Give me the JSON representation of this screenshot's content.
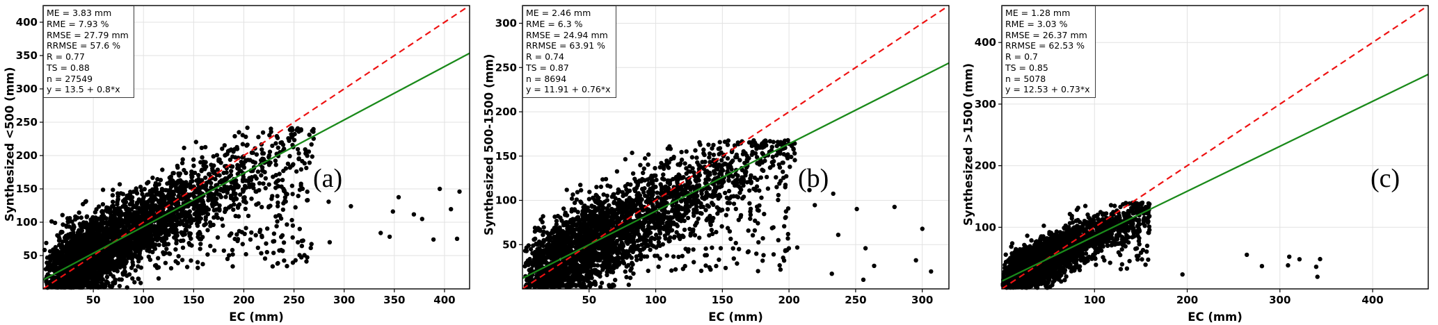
{
  "figure": {
    "background": "#ffffff",
    "point_color": "#000000",
    "identity_color": "#ee1111",
    "regression_color": "#1a8a1a",
    "grid_color": "#e2e2e2"
  },
  "chart_data": [
    {
      "type": "scatter",
      "panel_label": "(a)",
      "xlabel": "EC (mm)",
      "ylabel": "Synthesized <500 (mm)",
      "xlim": [
        0,
        425
      ],
      "ylim": [
        0,
        425
      ],
      "xticks": [
        50,
        100,
        150,
        200,
        250,
        300,
        350,
        400
      ],
      "yticks": [
        50,
        100,
        150,
        200,
        250,
        300,
        350,
        400
      ],
      "grid": true,
      "stats": [
        "ME = 3.83 mm",
        "RME = 7.93 %",
        "RMSE = 27.79 mm",
        "RRMSE = 57.6 %",
        "R = 0.77",
        "TS = 0.88",
        "n = 27549",
        "y = 13.5 + 0.8*x"
      ],
      "identity_line": {
        "type": "1:1",
        "dashed": true,
        "color": "#ee1111"
      },
      "regression_line": {
        "intercept": 13.5,
        "slope": 0.8,
        "color": "#1a8a1a"
      },
      "scatter_style": {
        "color": "#000000",
        "radius": 3.2
      },
      "cloud": {
        "n_rendered": 3200,
        "x_mean": 85,
        "x_cap": 270,
        "noise_sd": 28,
        "y_cap": 242,
        "spread": {
          "n": 200,
          "x": [
            110,
            265
          ],
          "y": [
            30,
            160
          ]
        },
        "outliers": {
          "n": 16,
          "x": [
            265,
            420
          ],
          "y": [
            55,
            160
          ]
        }
      }
    },
    {
      "type": "scatter",
      "panel_label": "(b)",
      "xlabel": "EC (mm)",
      "ylabel": "Synthesized 500-1500 (mm)",
      "xlim": [
        0,
        320
      ],
      "ylim": [
        0,
        320
      ],
      "xticks": [
        50,
        100,
        150,
        200,
        250,
        300
      ],
      "yticks": [
        50,
        100,
        150,
        200,
        250,
        300
      ],
      "grid": true,
      "stats": [
        "ME = 2.46 mm",
        "RME = 6.3 %",
        "RMSE = 24.94 mm",
        "RRMSE = 63.91 %",
        "R = 0.74",
        "TS = 0.87",
        "n = 8694",
        "y = 11.91 + 0.76*x"
      ],
      "identity_line": {
        "type": "1:1",
        "dashed": true,
        "color": "#ee1111"
      },
      "regression_line": {
        "intercept": 11.91,
        "slope": 0.76,
        "color": "#1a8a1a"
      },
      "scatter_style": {
        "color": "#000000",
        "radius": 3.2
      },
      "cloud": {
        "n_rendered": 2800,
        "x_mean": 72,
        "x_cap": 205,
        "noise_sd": 24,
        "y_cap": 168,
        "spread": {
          "n": 150,
          "x": [
            90,
            200
          ],
          "y": [
            20,
            130
          ]
        },
        "outliers": {
          "n": 14,
          "x": [
            205,
            312
          ],
          "y": [
            8,
            120
          ]
        }
      }
    },
    {
      "type": "scatter",
      "panel_label": "(c)",
      "xlabel": "EC (mm)",
      "ylabel": "Synthesized >1500 (mm)",
      "xlim": [
        0,
        460
      ],
      "ylim": [
        0,
        460
      ],
      "xticks": [
        100,
        200,
        300,
        400
      ],
      "yticks": [
        100,
        200,
        300,
        400
      ],
      "grid": true,
      "stats": [
        "ME = 1.28 mm",
        "RME = 3.03 %",
        "RMSE = 26.37 mm",
        "RRMSE = 62.53 %",
        "R = 0.7",
        "TS = 0.85",
        "n = 5078",
        "y = 12.53 + 0.73*x"
      ],
      "identity_line": {
        "type": "1:1",
        "dashed": true,
        "color": "#ee1111"
      },
      "regression_line": {
        "intercept": 12.53,
        "slope": 0.73,
        "color": "#1a8a1a"
      },
      "scatter_style": {
        "color": "#000000",
        "radius": 3.2
      },
      "cloud": {
        "n_rendered": 2400,
        "x_mean": 58,
        "x_cap": 160,
        "noise_sd": 18,
        "y_cap": 140,
        "spread": {
          "n": 100,
          "x": [
            70,
            160
          ],
          "y": [
            30,
            120
          ]
        },
        "outliers": {
          "n": 9,
          "x": [
            175,
            390
          ],
          "y": [
            18,
            70
          ]
        }
      }
    }
  ]
}
